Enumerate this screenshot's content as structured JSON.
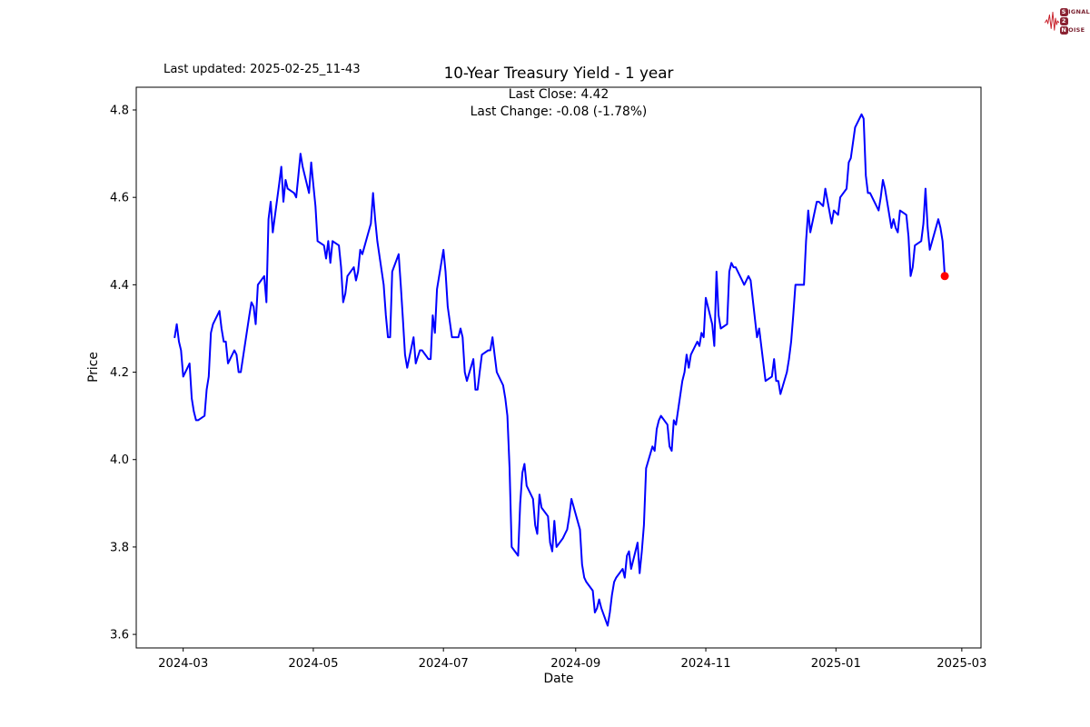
{
  "header": {
    "last_updated": "Last updated: 2025-02-25_11-43",
    "logo": {
      "s": "S",
      "ignal": "IGNAL",
      "two": "2",
      "n": "N",
      "oise": "OISE"
    }
  },
  "chart_data": {
    "type": "line",
    "title": "10-Year Treasury Yield - 1 year",
    "subtitle_line1": "Last Close: 4.42",
    "subtitle_line2": "Last Change: -0.08 (-1.78%)",
    "xlabel": "Date",
    "ylabel": "Price",
    "last_close": 4.42,
    "last_change_abs": -0.08,
    "last_change_pct": "-1.78%",
    "line_color": "#0000ff",
    "marker_color": "#ff0000",
    "grid": false,
    "legend": "none",
    "xlim": [
      "2024-02-08",
      "2025-03-10"
    ],
    "ylim": [
      3.569,
      4.852
    ],
    "x_ticks": [
      {
        "label": "2024-03",
        "date": "2024-03-01"
      },
      {
        "label": "2024-05",
        "date": "2024-05-01"
      },
      {
        "label": "2024-07",
        "date": "2024-07-01"
      },
      {
        "label": "2024-09",
        "date": "2024-09-01"
      },
      {
        "label": "2024-11",
        "date": "2024-11-01"
      },
      {
        "label": "2025-01",
        "date": "2025-01-01"
      },
      {
        "label": "2025-03",
        "date": "2025-03-01"
      }
    ],
    "y_ticks": [
      {
        "label": "4.8",
        "value": 4.8
      },
      {
        "label": "4.6",
        "value": 4.6
      },
      {
        "label": "4.4",
        "value": 4.4
      },
      {
        "label": "4.2",
        "value": 4.2
      },
      {
        "label": "4.0",
        "value": 4.0
      },
      {
        "label": "3.8",
        "value": 3.8
      },
      {
        "label": "3.6",
        "value": 3.6
      }
    ],
    "series": [
      {
        "name": "10-Year Treasury Yield",
        "points": [
          [
            "2024-02-26",
            4.28
          ],
          [
            "2024-02-27",
            4.31
          ],
          [
            "2024-02-28",
            4.27
          ],
          [
            "2024-02-29",
            4.25
          ],
          [
            "2024-03-01",
            4.19
          ],
          [
            "2024-03-04",
            4.22
          ],
          [
            "2024-03-05",
            4.14
          ],
          [
            "2024-03-06",
            4.11
          ],
          [
            "2024-03-07",
            4.09
          ],
          [
            "2024-03-08",
            4.09
          ],
          [
            "2024-03-11",
            4.1
          ],
          [
            "2024-03-12",
            4.16
          ],
          [
            "2024-03-13",
            4.19
          ],
          [
            "2024-03-14",
            4.29
          ],
          [
            "2024-03-15",
            4.31
          ],
          [
            "2024-03-18",
            4.34
          ],
          [
            "2024-03-19",
            4.3
          ],
          [
            "2024-03-20",
            4.27
          ],
          [
            "2024-03-21",
            4.27
          ],
          [
            "2024-03-22",
            4.22
          ],
          [
            "2024-03-25",
            4.25
          ],
          [
            "2024-03-26",
            4.24
          ],
          [
            "2024-03-27",
            4.2
          ],
          [
            "2024-03-28",
            4.2
          ],
          [
            "2024-04-01",
            4.33
          ],
          [
            "2024-04-02",
            4.36
          ],
          [
            "2024-04-03",
            4.35
          ],
          [
            "2024-04-04",
            4.31
          ],
          [
            "2024-04-05",
            4.4
          ],
          [
            "2024-04-08",
            4.42
          ],
          [
            "2024-04-09",
            4.36
          ],
          [
            "2024-04-10",
            4.55
          ],
          [
            "2024-04-11",
            4.59
          ],
          [
            "2024-04-12",
            4.52
          ],
          [
            "2024-04-15",
            4.63
          ],
          [
            "2024-04-16",
            4.67
          ],
          [
            "2024-04-17",
            4.59
          ],
          [
            "2024-04-18",
            4.64
          ],
          [
            "2024-04-19",
            4.62
          ],
          [
            "2024-04-22",
            4.61
          ],
          [
            "2024-04-23",
            4.6
          ],
          [
            "2024-04-24",
            4.65
          ],
          [
            "2024-04-25",
            4.7
          ],
          [
            "2024-04-26",
            4.67
          ],
          [
            "2024-04-29",
            4.61
          ],
          [
            "2024-04-30",
            4.68
          ],
          [
            "2024-05-01",
            4.63
          ],
          [
            "2024-05-02",
            4.58
          ],
          [
            "2024-05-03",
            4.5
          ],
          [
            "2024-05-06",
            4.49
          ],
          [
            "2024-05-07",
            4.46
          ],
          [
            "2024-05-08",
            4.5
          ],
          [
            "2024-05-09",
            4.45
          ],
          [
            "2024-05-10",
            4.5
          ],
          [
            "2024-05-13",
            4.49
          ],
          [
            "2024-05-14",
            4.44
          ],
          [
            "2024-05-15",
            4.36
          ],
          [
            "2024-05-16",
            4.38
          ],
          [
            "2024-05-17",
            4.42
          ],
          [
            "2024-05-20",
            4.44
          ],
          [
            "2024-05-21",
            4.41
          ],
          [
            "2024-05-22",
            4.43
          ],
          [
            "2024-05-23",
            4.48
          ],
          [
            "2024-05-24",
            4.47
          ],
          [
            "2024-05-28",
            4.54
          ],
          [
            "2024-05-29",
            4.61
          ],
          [
            "2024-05-30",
            4.55
          ],
          [
            "2024-05-31",
            4.5
          ],
          [
            "2024-06-03",
            4.4
          ],
          [
            "2024-06-04",
            4.33
          ],
          [
            "2024-06-05",
            4.28
          ],
          [
            "2024-06-06",
            4.28
          ],
          [
            "2024-06-07",
            4.43
          ],
          [
            "2024-06-10",
            4.47
          ],
          [
            "2024-06-11",
            4.4
          ],
          [
            "2024-06-12",
            4.32
          ],
          [
            "2024-06-13",
            4.24
          ],
          [
            "2024-06-14",
            4.21
          ],
          [
            "2024-06-17",
            4.28
          ],
          [
            "2024-06-18",
            4.22
          ],
          [
            "2024-06-20",
            4.25
          ],
          [
            "2024-06-21",
            4.25
          ],
          [
            "2024-06-24",
            4.23
          ],
          [
            "2024-06-25",
            4.23
          ],
          [
            "2024-06-26",
            4.33
          ],
          [
            "2024-06-27",
            4.29
          ],
          [
            "2024-06-28",
            4.39
          ],
          [
            "2024-07-01",
            4.48
          ],
          [
            "2024-07-02",
            4.43
          ],
          [
            "2024-07-03",
            4.35
          ],
          [
            "2024-07-05",
            4.28
          ],
          [
            "2024-07-08",
            4.28
          ],
          [
            "2024-07-09",
            4.3
          ],
          [
            "2024-07-10",
            4.28
          ],
          [
            "2024-07-11",
            4.2
          ],
          [
            "2024-07-12",
            4.18
          ],
          [
            "2024-07-15",
            4.23
          ],
          [
            "2024-07-16",
            4.16
          ],
          [
            "2024-07-17",
            4.16
          ],
          [
            "2024-07-18",
            4.2
          ],
          [
            "2024-07-19",
            4.24
          ],
          [
            "2024-07-22",
            4.25
          ],
          [
            "2024-07-23",
            4.25
          ],
          [
            "2024-07-24",
            4.28
          ],
          [
            "2024-07-25",
            4.24
          ],
          [
            "2024-07-26",
            4.2
          ],
          [
            "2024-07-29",
            4.17
          ],
          [
            "2024-07-30",
            4.14
          ],
          [
            "2024-07-31",
            4.1
          ],
          [
            "2024-08-01",
            3.98
          ],
          [
            "2024-08-02",
            3.8
          ],
          [
            "2024-08-05",
            3.78
          ],
          [
            "2024-08-06",
            3.9
          ],
          [
            "2024-08-07",
            3.97
          ],
          [
            "2024-08-08",
            3.99
          ],
          [
            "2024-08-09",
            3.94
          ],
          [
            "2024-08-12",
            3.91
          ],
          [
            "2024-08-13",
            3.85
          ],
          [
            "2024-08-14",
            3.83
          ],
          [
            "2024-08-15",
            3.92
          ],
          [
            "2024-08-16",
            3.89
          ],
          [
            "2024-08-19",
            3.87
          ],
          [
            "2024-08-20",
            3.81
          ],
          [
            "2024-08-21",
            3.79
          ],
          [
            "2024-08-22",
            3.86
          ],
          [
            "2024-08-23",
            3.8
          ],
          [
            "2024-08-26",
            3.82
          ],
          [
            "2024-08-27",
            3.83
          ],
          [
            "2024-08-28",
            3.84
          ],
          [
            "2024-08-29",
            3.87
          ],
          [
            "2024-08-30",
            3.91
          ],
          [
            "2024-09-03",
            3.84
          ],
          [
            "2024-09-04",
            3.76
          ],
          [
            "2024-09-05",
            3.73
          ],
          [
            "2024-09-06",
            3.72
          ],
          [
            "2024-09-09",
            3.7
          ],
          [
            "2024-09-10",
            3.65
          ],
          [
            "2024-09-11",
            3.66
          ],
          [
            "2024-09-12",
            3.68
          ],
          [
            "2024-09-13",
            3.66
          ],
          [
            "2024-09-16",
            3.62
          ],
          [
            "2024-09-17",
            3.65
          ],
          [
            "2024-09-18",
            3.69
          ],
          [
            "2024-09-19",
            3.72
          ],
          [
            "2024-09-20",
            3.73
          ],
          [
            "2024-09-23",
            3.75
          ],
          [
            "2024-09-24",
            3.73
          ],
          [
            "2024-09-25",
            3.78
          ],
          [
            "2024-09-26",
            3.79
          ],
          [
            "2024-09-27",
            3.75
          ],
          [
            "2024-09-30",
            3.81
          ],
          [
            "2024-10-01",
            3.74
          ],
          [
            "2024-10-02",
            3.79
          ],
          [
            "2024-10-03",
            3.85
          ],
          [
            "2024-10-04",
            3.98
          ],
          [
            "2024-10-07",
            4.03
          ],
          [
            "2024-10-08",
            4.02
          ],
          [
            "2024-10-09",
            4.07
          ],
          [
            "2024-10-10",
            4.09
          ],
          [
            "2024-10-11",
            4.1
          ],
          [
            "2024-10-14",
            4.08
          ],
          [
            "2024-10-15",
            4.03
          ],
          [
            "2024-10-16",
            4.02
          ],
          [
            "2024-10-17",
            4.09
          ],
          [
            "2024-10-18",
            4.08
          ],
          [
            "2024-10-21",
            4.18
          ],
          [
            "2024-10-22",
            4.2
          ],
          [
            "2024-10-23",
            4.24
          ],
          [
            "2024-10-24",
            4.21
          ],
          [
            "2024-10-25",
            4.24
          ],
          [
            "2024-10-28",
            4.27
          ],
          [
            "2024-10-29",
            4.26
          ],
          [
            "2024-10-30",
            4.29
          ],
          [
            "2024-10-31",
            4.28
          ],
          [
            "2024-11-01",
            4.37
          ],
          [
            "2024-11-04",
            4.31
          ],
          [
            "2024-11-05",
            4.26
          ],
          [
            "2024-11-06",
            4.43
          ],
          [
            "2024-11-07",
            4.33
          ],
          [
            "2024-11-08",
            4.3
          ],
          [
            "2024-11-11",
            4.31
          ],
          [
            "2024-11-12",
            4.43
          ],
          [
            "2024-11-13",
            4.45
          ],
          [
            "2024-11-14",
            4.44
          ],
          [
            "2024-11-15",
            4.44
          ],
          [
            "2024-11-18",
            4.41
          ],
          [
            "2024-11-19",
            4.4
          ],
          [
            "2024-11-20",
            4.41
          ],
          [
            "2024-11-21",
            4.42
          ],
          [
            "2024-11-22",
            4.41
          ],
          [
            "2024-11-25",
            4.28
          ],
          [
            "2024-11-26",
            4.3
          ],
          [
            "2024-11-27",
            4.26
          ],
          [
            "2024-11-29",
            4.18
          ],
          [
            "2024-12-02",
            4.19
          ],
          [
            "2024-12-03",
            4.23
          ],
          [
            "2024-12-04",
            4.18
          ],
          [
            "2024-12-05",
            4.18
          ],
          [
            "2024-12-06",
            4.15
          ],
          [
            "2024-12-09",
            4.2
          ],
          [
            "2024-12-10",
            4.23
          ],
          [
            "2024-12-11",
            4.27
          ],
          [
            "2024-12-12",
            4.33
          ],
          [
            "2024-12-13",
            4.4
          ],
          [
            "2024-12-16",
            4.4
          ],
          [
            "2024-12-17",
            4.4
          ],
          [
            "2024-12-18",
            4.5
          ],
          [
            "2024-12-19",
            4.57
          ],
          [
            "2024-12-20",
            4.52
          ],
          [
            "2024-12-23",
            4.59
          ],
          [
            "2024-12-24",
            4.59
          ],
          [
            "2024-12-26",
            4.58
          ],
          [
            "2024-12-27",
            4.62
          ],
          [
            "2024-12-30",
            4.54
          ],
          [
            "2024-12-31",
            4.57
          ],
          [
            "2025-01-02",
            4.56
          ],
          [
            "2025-01-03",
            4.6
          ],
          [
            "2025-01-06",
            4.62
          ],
          [
            "2025-01-07",
            4.68
          ],
          [
            "2025-01-08",
            4.69
          ],
          [
            "2025-01-10",
            4.76
          ],
          [
            "2025-01-13",
            4.79
          ],
          [
            "2025-01-14",
            4.78
          ],
          [
            "2025-01-15",
            4.65
          ],
          [
            "2025-01-16",
            4.61
          ],
          [
            "2025-01-17",
            4.61
          ],
          [
            "2025-01-21",
            4.57
          ],
          [
            "2025-01-22",
            4.6
          ],
          [
            "2025-01-23",
            4.64
          ],
          [
            "2025-01-24",
            4.62
          ],
          [
            "2025-01-27",
            4.53
          ],
          [
            "2025-01-28",
            4.55
          ],
          [
            "2025-01-29",
            4.53
          ],
          [
            "2025-01-30",
            4.52
          ],
          [
            "2025-01-31",
            4.57
          ],
          [
            "2025-02-03",
            4.56
          ],
          [
            "2025-02-04",
            4.51
          ],
          [
            "2025-02-05",
            4.42
          ],
          [
            "2025-02-06",
            4.44
          ],
          [
            "2025-02-07",
            4.49
          ],
          [
            "2025-02-10",
            4.5
          ],
          [
            "2025-02-11",
            4.54
          ],
          [
            "2025-02-12",
            4.62
          ],
          [
            "2025-02-13",
            4.53
          ],
          [
            "2025-02-14",
            4.48
          ],
          [
            "2025-02-18",
            4.55
          ],
          [
            "2025-02-19",
            4.53
          ],
          [
            "2025-02-20",
            4.5
          ],
          [
            "2025-02-21",
            4.42
          ]
        ]
      }
    ]
  }
}
